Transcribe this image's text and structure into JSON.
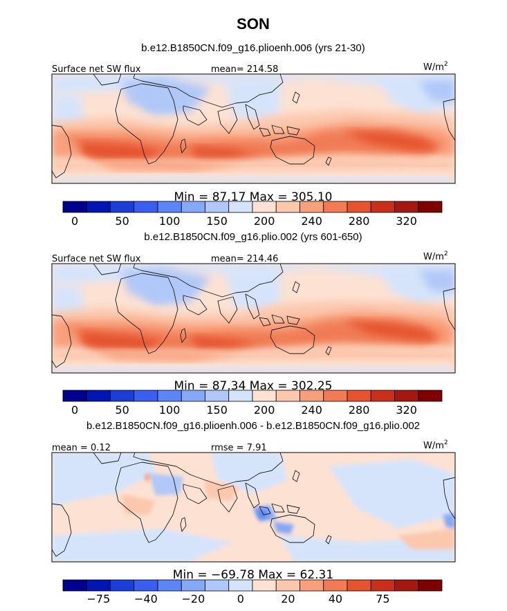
{
  "figure": {
    "season": "SON",
    "field_label": "Surface net SW flux",
    "units": "W/m",
    "units_exp": "2"
  },
  "chart_data": [
    {
      "type": "heatmap",
      "title": "b.e12.B1850CN.f09_g16.plioenh.006 (yrs 21-30)",
      "left_label": "Surface net SW flux",
      "center_label": "mean= 214.58",
      "mean": 214.58,
      "min": 87.17,
      "max": 305.1,
      "stats_text": "Min =  87.17 Max = 305.10",
      "units": "W/m2",
      "colorbar_levels": [
        0,
        25,
        50,
        75,
        100,
        125,
        150,
        175,
        200,
        220,
        240,
        260,
        280,
        300,
        320
      ],
      "colorbar_ticks": [
        "0",
        "50",
        "100",
        "150",
        "200",
        "240",
        "280",
        "320"
      ]
    },
    {
      "type": "heatmap",
      "title": "b.e12.B1850CN.f09_g16.plio.002 (yrs 601-650)",
      "left_label": "Surface net SW flux",
      "center_label": "mean= 214.46",
      "mean": 214.46,
      "min": 87.34,
      "max": 302.25,
      "stats_text": "Min =  87.34 Max = 302.25",
      "units": "W/m2",
      "colorbar_levels": [
        0,
        25,
        50,
        75,
        100,
        125,
        150,
        175,
        200,
        220,
        240,
        260,
        280,
        300,
        320
      ],
      "colorbar_ticks": [
        "0",
        "50",
        "100",
        "150",
        "200",
        "240",
        "280",
        "320"
      ]
    },
    {
      "type": "heatmap",
      "title": "b.e12.B1850CN.f09_g16.plioenh.006 - b.e12.B1850CN.f09_g16.plio.002",
      "left_label": "mean =   0.12",
      "center_label": "rmse =    7.91",
      "mean": 0.12,
      "rmse": 7.91,
      "min": -69.78,
      "max": 62.31,
      "stats_text": "Min = −69.78 Max =  62.31",
      "units": "W/m2",
      "colorbar_levels": [
        -75,
        -60,
        -40,
        -30,
        -20,
        -10,
        0,
        10,
        20,
        30,
        40,
        60,
        75
      ],
      "colorbar_ticks": [
        "−75",
        "−40",
        "−20",
        "0",
        "20",
        "40",
        "75"
      ]
    }
  ],
  "colors": {
    "ramp": [
      "#00008f",
      "#0015b2",
      "#1b3fd6",
      "#3a5ef0",
      "#5c86f5",
      "#85a8f7",
      "#b0c8f8",
      "#d6e4fb",
      "#fde2d3",
      "#fbc7ad",
      "#f8a07c",
      "#f07b55",
      "#e5532f",
      "#c8301c",
      "#a5180f",
      "#7f0000"
    ],
    "base_warm": "#fde2d3",
    "coast": "#1a1a1a"
  }
}
